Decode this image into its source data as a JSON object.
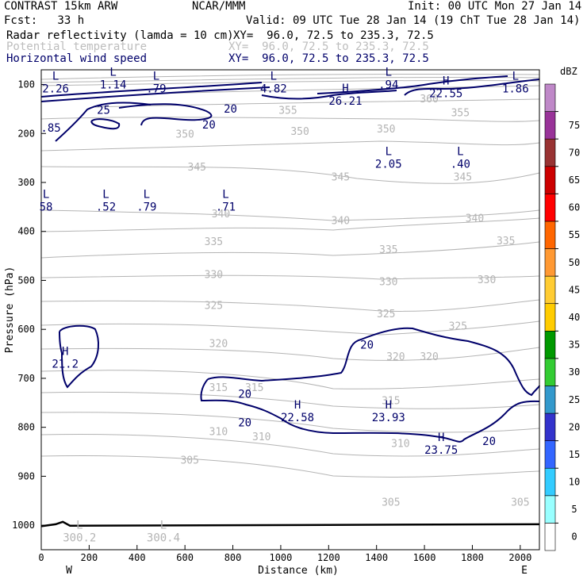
{
  "header": {
    "model": "CONTRAST 15km ARW",
    "org": "NCAR/MMM",
    "init": "Init: 00 UTC Mon 27 Jan 14",
    "fcst": "Fcst:   33 h",
    "valid": "Valid: 09 UTC Tue 28 Jan 14 (19 ChT Tue 28 Jan 14)",
    "field1": "Radar reflectivity (lamda = 10 cm)",
    "field1_xy": "XY=  96.0, 72.5 to 235.3, 72.5",
    "field2": "Potential temperature",
    "field2_xy": "XY=  96.0, 72.5 to 235.3, 72.5",
    "field3": "Horizontal wind speed",
    "field3_xy": "XY=  96.0, 72.5 to 235.3, 72.5"
  },
  "colors": {
    "theta": "#b4b4b4",
    "wind": "#00006a",
    "terrain": "#000000"
  },
  "chart_data": {
    "type": "cross-section contour",
    "xlabel": "Distance (km)",
    "ylabel": "Pressure (hPa)",
    "xlim": [
      0,
      2080
    ],
    "ylim": [
      1050,
      70
    ],
    "x_ticks": [
      0,
      200,
      400,
      600,
      800,
      1000,
      1200,
      1400,
      1600,
      1800,
      2000
    ],
    "y_ticks": [
      100,
      200,
      300,
      400,
      500,
      600,
      700,
      800,
      900,
      1000
    ],
    "x_ends": {
      "left": "W",
      "right": "E"
    },
    "theta_labels": [
      {
        "text": "355",
        "x": 1030,
        "p": 152
      },
      {
        "text": "355",
        "x": 1750,
        "p": 157
      },
      {
        "text": "360",
        "x": 1620,
        "p": 128
      },
      {
        "text": "350",
        "x": 1080,
        "p": 195
      },
      {
        "text": "350",
        "x": 600,
        "p": 200
      },
      {
        "text": "350",
        "x": 1440,
        "p": 190
      },
      {
        "text": "345",
        "x": 650,
        "p": 268
      },
      {
        "text": "345",
        "x": 1250,
        "p": 288
      },
      {
        "text": "345",
        "x": 1760,
        "p": 288
      },
      {
        "text": "340",
        "x": 1250,
        "p": 377
      },
      {
        "text": "340",
        "x": 1810,
        "p": 372
      },
      {
        "text": "340",
        "x": 750,
        "p": 363
      },
      {
        "text": "335",
        "x": 720,
        "p": 420
      },
      {
        "text": "335",
        "x": 1450,
        "p": 436
      },
      {
        "text": "335",
        "x": 1940,
        "p": 418
      },
      {
        "text": "330",
        "x": 720,
        "p": 487
      },
      {
        "text": "330",
        "x": 1450,
        "p": 502
      },
      {
        "text": "330",
        "x": 1860,
        "p": 498
      },
      {
        "text": "325",
        "x": 720,
        "p": 550
      },
      {
        "text": "325",
        "x": 1440,
        "p": 567
      },
      {
        "text": "325",
        "x": 1740,
        "p": 592
      },
      {
        "text": "320",
        "x": 740,
        "p": 628
      },
      {
        "text": "320",
        "x": 1480,
        "p": 655
      },
      {
        "text": "320",
        "x": 1620,
        "p": 655
      },
      {
        "text": "315",
        "x": 740,
        "p": 718
      },
      {
        "text": "315",
        "x": 890,
        "p": 718
      },
      {
        "text": "315",
        "x": 1460,
        "p": 745
      },
      {
        "text": "310",
        "x": 740,
        "p": 808
      },
      {
        "text": "310",
        "x": 920,
        "p": 818
      },
      {
        "text": "310",
        "x": 1500,
        "p": 832
      },
      {
        "text": "305",
        "x": 620,
        "p": 866
      },
      {
        "text": "305",
        "x": 1460,
        "p": 952
      },
      {
        "text": "305",
        "x": 2000,
        "p": 952
      }
    ],
    "wind_labels": [
      {
        "text": "25",
        "x": 260,
        "p": 152
      },
      {
        "text": "20",
        "x": 700,
        "p": 182
      },
      {
        "text": "20",
        "x": 790,
        "p": 149
      },
      {
        "text": "20",
        "x": 1360,
        "p": 631
      },
      {
        "text": "20",
        "x": 850,
        "p": 732
      },
      {
        "text": "20",
        "x": 850,
        "p": 790
      },
      {
        "text": "20",
        "x": 1870,
        "p": 828
      }
    ],
    "extrema": [
      {
        "kind": "L",
        "value": "2.26",
        "x": 60,
        "p": 90
      },
      {
        "kind": "L",
        "value": "1.14",
        "x": 300,
        "p": 82
      },
      {
        "kind": "L",
        "value": ".79",
        "x": 480,
        "p": 90
      },
      {
        "kind": "L",
        "value": "4.82",
        "x": 970,
        "p": 90
      },
      {
        "kind": "L",
        "value": ".94",
        "x": 1450,
        "p": 82
      },
      {
        "kind": "L",
        "value": "1.86",
        "x": 1980,
        "p": 90
      },
      {
        "kind": "H",
        "value": "26.21",
        "x": 1270,
        "p": 115
      },
      {
        "kind": "H",
        "value": "22.55",
        "x": 1690,
        "p": 100
      },
      {
        "kind": "L",
        "value": "2.05",
        "x": 1450,
        "p": 244
      },
      {
        "kind": "L",
        "value": ".40",
        "x": 1750,
        "p": 244
      },
      {
        "kind": "L",
        "value": "58",
        "x": 20,
        "p": 332
      },
      {
        "kind": "L",
        "value": ".52",
        "x": 270,
        "p": 332
      },
      {
        "kind": "L",
        "value": ".79",
        "x": 440,
        "p": 332
      },
      {
        "kind": "L",
        "value": ".71",
        "x": 770,
        "p": 332
      },
      {
        "kind": "H",
        "value": "21.2",
        "x": 100,
        "p": 652
      },
      {
        "kind": "H",
        "value": "22.58",
        "x": 1070,
        "p": 762
      },
      {
        "kind": "H",
        "value": "23.93",
        "x": 1450,
        "p": 762
      },
      {
        "kind": "H",
        "value": "23.75",
        "x": 1670,
        "p": 828
      },
      {
        "kind": "L",
        "value": "300.2",
        "x": 160,
        "p": 1007
      },
      {
        "kind": "L",
        "value": "300.4",
        "x": 510,
        "p": 1007
      }
    ],
    "extra_labels": [
      {
        "text": ".85",
        "x": 40,
        "p": 188
      }
    ],
    "colorbar": {
      "title": "dBZ",
      "levels": [
        0,
        5,
        10,
        15,
        20,
        25,
        30,
        35,
        40,
        45,
        50,
        55,
        60,
        65,
        70,
        75
      ],
      "colors": [
        "#ffffff",
        "#99ffff",
        "#33ccff",
        "#3366ff",
        "#3333cc",
        "#3399cc",
        "#33cc33",
        "#009900",
        "#ffcc00",
        "#ffcc33",
        "#ff9933",
        "#ff6600",
        "#ff0000",
        "#cc0000",
        "#993333",
        "#993399",
        "#bf88c8"
      ]
    }
  }
}
